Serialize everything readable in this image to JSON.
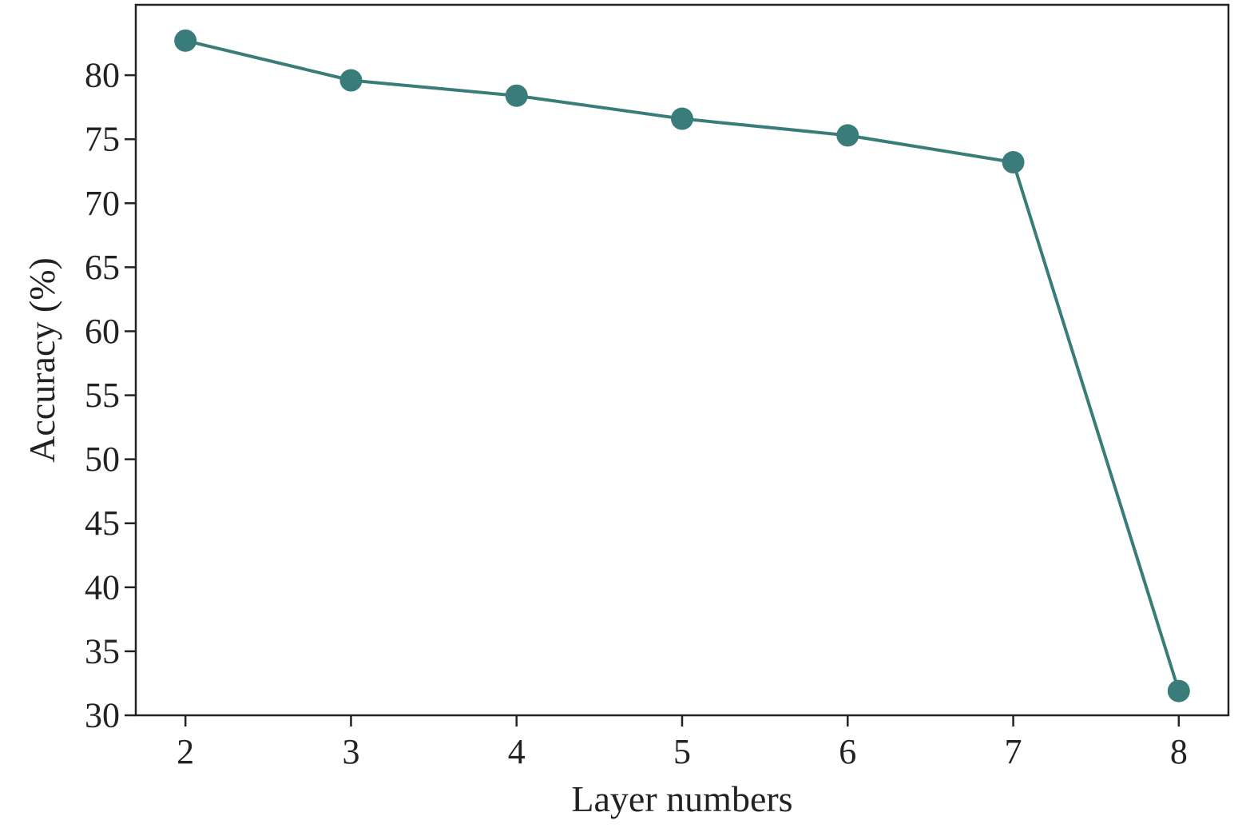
{
  "chart_data": {
    "type": "line",
    "title": "",
    "xlabel": "Layer numbers",
    "ylabel": "Accuracy (%)",
    "x": [
      2,
      3,
      4,
      5,
      6,
      7,
      8
    ],
    "xticks": [
      "2",
      "3",
      "4",
      "5",
      "6",
      "7",
      "8"
    ],
    "yticks": [
      "30",
      "35",
      "40",
      "45",
      "50",
      "55",
      "60",
      "65",
      "70",
      "75",
      "80"
    ],
    "xlim": [
      1.7,
      8.3
    ],
    "ylim": [
      30,
      85.5
    ],
    "grid": false,
    "legend": "none",
    "series": [
      {
        "values": [
          82.7,
          79.6,
          78.4,
          76.6,
          75.3,
          73.2,
          31.9
        ],
        "color": "#3a7c7a"
      }
    ]
  }
}
